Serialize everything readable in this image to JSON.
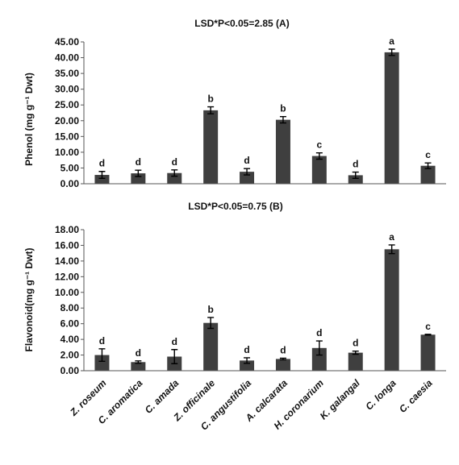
{
  "chart_data": [
    {
      "type": "bar",
      "title": "LSD*P<0.05=2.85 (A)",
      "ylabel": "Phenol (mg g⁻¹ Dwt)",
      "xlabel": "",
      "ylim": [
        0,
        45
      ],
      "yticks": [
        "0.00",
        "5.00",
        "10.00",
        "15.00",
        "20.00",
        "25.00",
        "30.00",
        "35.00",
        "40.00",
        "45.00"
      ],
      "categories": [
        "Z. roseum",
        "C. aromatica",
        "C. amada",
        "Z. officinale",
        "C. angustifolia",
        "A. calcarata",
        "H. coronarium",
        "K. galangal",
        "C. longa",
        "C. caesia"
      ],
      "values": [
        2.8,
        3.3,
        3.4,
        23.3,
        3.8,
        20.3,
        8.8,
        2.7,
        41.7,
        5.7
      ],
      "errors": [
        1.1,
        1.0,
        1.0,
        1.1,
        1.0,
        1.0,
        1.0,
        1.0,
        1.0,
        0.9
      ],
      "letters": [
        "d",
        "d",
        "d",
        "b",
        "d",
        "b",
        "c",
        "d",
        "a",
        "c"
      ]
    },
    {
      "type": "bar",
      "title": "LSD*P<0.05=0.75 (B)",
      "ylabel": "Flavonoid(mg g⁻¹ Dwt)",
      "xlabel": "",
      "ylim": [
        0,
        18
      ],
      "yticks": [
        "0.00",
        "2.00",
        "4.00",
        "6.00",
        "8.00",
        "10.00",
        "12.00",
        "14.00",
        "16.00",
        "18.00"
      ],
      "categories": [
        "Z. roseum",
        "C. aromatica",
        "C. amada",
        "Z. officinale",
        "C. angustifolia",
        "A. calcarata",
        "H. coronarium",
        "K. galangal",
        "C. longa",
        "C. caesia"
      ],
      "values": [
        2.0,
        1.1,
        1.8,
        6.1,
        1.3,
        1.5,
        2.9,
        2.3,
        15.5,
        4.6
      ],
      "errors": [
        0.8,
        0.15,
        0.9,
        0.7,
        0.35,
        0.1,
        0.9,
        0.2,
        0.55,
        0.05
      ],
      "letters": [
        "d",
        "d",
        "d",
        "b",
        "d",
        "d",
        "d",
        "d",
        "a",
        "c"
      ]
    }
  ]
}
